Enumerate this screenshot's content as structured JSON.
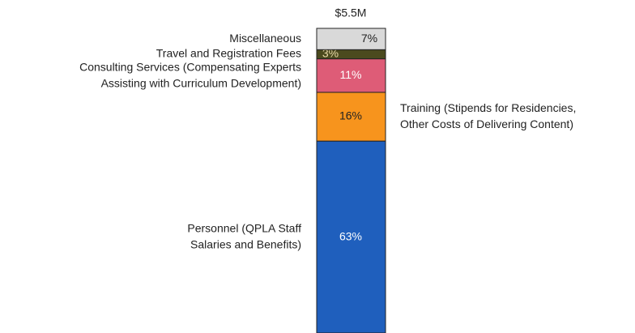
{
  "chart_data": {
    "type": "stacked_bar",
    "total_label": "$5.5M",
    "ylim": [
      0,
      100
    ],
    "series": [
      {
        "name": "Personnel (QPLA Staff\nSalaries and Benefits)",
        "color": "#1f5fbd",
        "values": [
          63
        ],
        "value_labels": [
          "63%"
        ]
      },
      {
        "name": "Training (Stipends for Residencies,\nOther Costs of Delivering Content)",
        "color": "#f7941d",
        "values": [
          16
        ],
        "value_labels": [
          "16%"
        ]
      },
      {
        "name": "Consulting Services (Compensating Experts\nAssisting with Curriculum Development)",
        "color": "#de5c77",
        "values": [
          11
        ],
        "value_labels": [
          "11%"
        ]
      },
      {
        "name": "Travel and Registration Fees",
        "color": "#4b4a1e",
        "values": [
          3
        ],
        "value_labels": [
          "3%"
        ]
      },
      {
        "name": "Miscellaneous",
        "color": "#d9d9d9",
        "values": [
          7
        ],
        "value_labels": [
          "7%"
        ]
      }
    ]
  }
}
